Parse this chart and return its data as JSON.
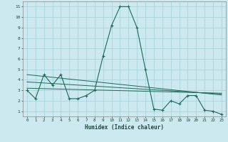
{
  "xlabel": "Humidex (Indice chaleur)",
  "bg_color": "#cce9ef",
  "grid_color": "#aad4db",
  "line_color": "#1a6b5a",
  "xlim": [
    -0.5,
    23.5
  ],
  "ylim": [
    0.5,
    11.5
  ],
  "xticks": [
    0,
    1,
    2,
    3,
    4,
    5,
    6,
    7,
    8,
    9,
    10,
    11,
    12,
    13,
    14,
    15,
    16,
    17,
    18,
    19,
    20,
    21,
    22,
    23
  ],
  "yticks": [
    1,
    2,
    3,
    4,
    5,
    6,
    7,
    8,
    9,
    10,
    11
  ],
  "series1_x": [
    0,
    1,
    2,
    3,
    4,
    5,
    6,
    7,
    8,
    9,
    10,
    11,
    12,
    13,
    14,
    15,
    16,
    17,
    18,
    19,
    20,
    21,
    22,
    23
  ],
  "series1_y": [
    3,
    2.2,
    4.5,
    3.5,
    4.5,
    2.2,
    2.2,
    2.5,
    3,
    6.3,
    9.2,
    11,
    11,
    9,
    5,
    1.2,
    1.1,
    2,
    1.7,
    2.5,
    2.5,
    1.1,
    1,
    0.7
  ],
  "series2_x": [
    0,
    23
  ],
  "series2_y": [
    4.5,
    2.55
  ],
  "series3_x": [
    0,
    23
  ],
  "series3_y": [
    3.8,
    2.65
  ],
  "series4_x": [
    0,
    23
  ],
  "series4_y": [
    3.2,
    2.72
  ]
}
